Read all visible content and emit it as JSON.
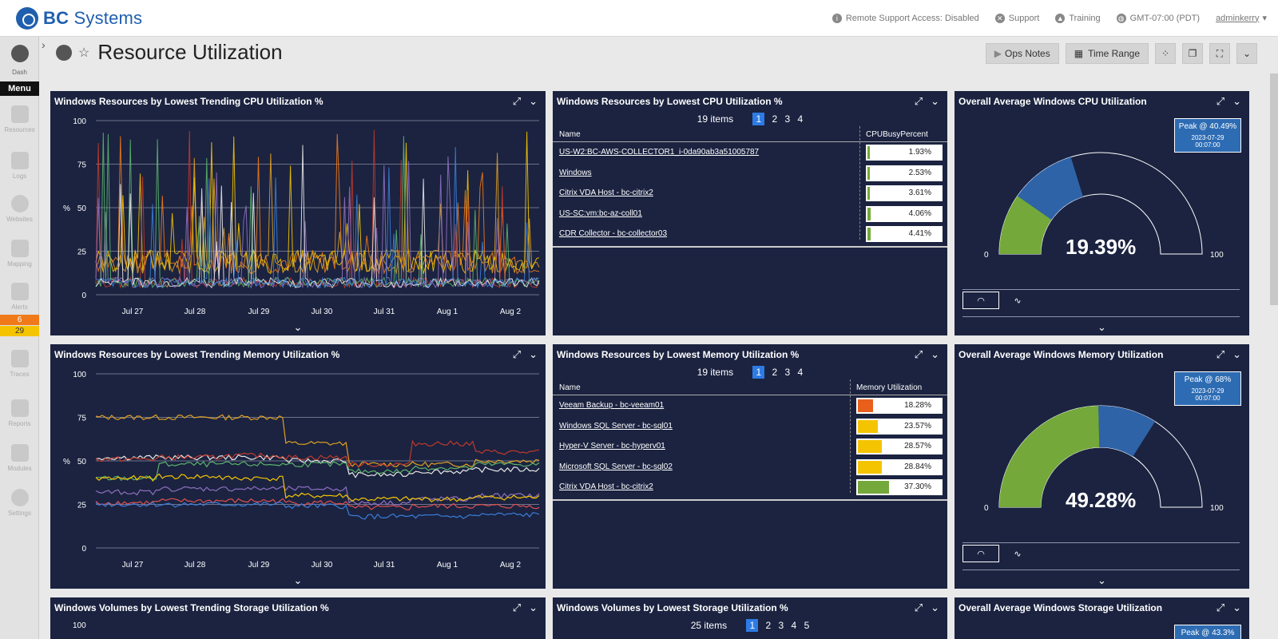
{
  "app": {
    "brand_bc": "BC",
    "brand_rest": " Systems",
    "remote_support": "Remote Support Access: Disabled",
    "support": "Support",
    "training": "Training",
    "timezone": "GMT-07:00 (PDT)",
    "user": "adminkerry"
  },
  "sidebar": {
    "dash": "Dash",
    "menu": "Menu",
    "items": [
      "Resources",
      "Logs",
      "Websites",
      "Mapping",
      "Alerts",
      "Traces",
      "Reports",
      "Modules",
      "Settings"
    ],
    "alert_badges": [
      "6",
      "29"
    ]
  },
  "page": {
    "title": "Resource Utilization",
    "toolbar": {
      "ops_notes": "Ops Notes",
      "time_range": "Time Range"
    }
  },
  "colors": {
    "panel_bg": "#1b2340",
    "gauge_green": "#74a83b",
    "gauge_blue": "#2e63a8",
    "accent_blue": "#2d7be5"
  },
  "panels": {
    "cpu_trend": {
      "title": "Windows Resources by Lowest Trending CPU Utilization %",
      "ylabel": "%",
      "yticks": [
        "100",
        "75",
        "50",
        "25",
        "0"
      ],
      "xticks": [
        "Jul 27",
        "Jul 28",
        "Jul 29",
        "Jul 30",
        "Jul 31",
        "Aug 1",
        "Aug 2"
      ]
    },
    "mem_trend": {
      "title": "Windows Resources by Lowest Trending Memory Utilization %",
      "ylabel": "%",
      "yticks": [
        "100",
        "75",
        "50",
        "25",
        "0"
      ],
      "xticks": [
        "Jul 27",
        "Jul 28",
        "Jul 29",
        "Jul 30",
        "Jul 31",
        "Aug 1",
        "Aug 2"
      ]
    },
    "storage_trend": {
      "title": "Windows Volumes by Lowest Trending Storage Utilization %",
      "ytop": "100"
    },
    "cpu_table": {
      "title": "Windows Resources by Lowest CPU Utilization %",
      "items": "19 items",
      "pages": [
        "1",
        "2",
        "3",
        "4"
      ],
      "col_name": "Name",
      "col_value": "CPUBusyPercent",
      "rows": [
        {
          "name": "US-W2:BC-AWS-COLLECTOR1_i-0da90ab3a51005787",
          "value": "1.93%",
          "pct": 1.93,
          "color": "#74a83b"
        },
        {
          "name": "Windows",
          "value": "2.53%",
          "pct": 2.53,
          "color": "#74a83b"
        },
        {
          "name": "Citrix VDA Host - bc-citrix2",
          "value": "3.61%",
          "pct": 3.61,
          "color": "#74a83b"
        },
        {
          "name": "US-SC:vm:bc-az-coll01",
          "value": "4.06%",
          "pct": 4.06,
          "color": "#74a83b"
        },
        {
          "name": "CDR Collector - bc-collector03",
          "value": "4.41%",
          "pct": 4.41,
          "color": "#74a83b"
        }
      ]
    },
    "mem_table": {
      "title": "Windows Resources by Lowest Memory Utilization %",
      "items": "19 items",
      "pages": [
        "1",
        "2",
        "3",
        "4"
      ],
      "col_name": "Name",
      "col_value": "Memory Utilization",
      "rows": [
        {
          "name": "Veeam Backup - bc-veeam01",
          "value": "18.28%",
          "pct": 18.28,
          "color": "#e8601c"
        },
        {
          "name": "Windows SQL Server - bc-sql01",
          "value": "23.57%",
          "pct": 23.57,
          "color": "#f5c400"
        },
        {
          "name": "Hyper-V Server - bc-hyperv01",
          "value": "28.57%",
          "pct": 28.57,
          "color": "#f5c400"
        },
        {
          "name": "Microsoft SQL Server - bc-sql02",
          "value": "28.84%",
          "pct": 28.84,
          "color": "#f5c400"
        },
        {
          "name": "Citrix VDA Host - bc-citrix2",
          "value": "37.30%",
          "pct": 37.3,
          "color": "#74a83b"
        }
      ]
    },
    "storage_table": {
      "title": "Windows Volumes by Lowest Storage Utilization %",
      "items": "25 items",
      "pages": [
        "1",
        "2",
        "3",
        "4",
        "5"
      ]
    },
    "cpu_gauge": {
      "title": "Overall Average Windows CPU Utilization",
      "peak": "Peak @ 40.49%",
      "peak_time": "2023-07-29 00:07:00",
      "value_text": "19.39%",
      "value": 19.39,
      "peak_value": 40.49,
      "min": "0",
      "max": "100"
    },
    "mem_gauge": {
      "title": "Overall Average Windows Memory Utilization",
      "peak": "Peak @ 68%",
      "peak_time": "2023-07-29 00:07:00",
      "value_text": "49.28%",
      "value": 49.28,
      "peak_value": 68,
      "min": "0",
      "max": "100"
    },
    "storage_gauge": {
      "title": "Overall Average Windows Storage Utilization",
      "peak": "Peak @ 43.3%"
    }
  }
}
